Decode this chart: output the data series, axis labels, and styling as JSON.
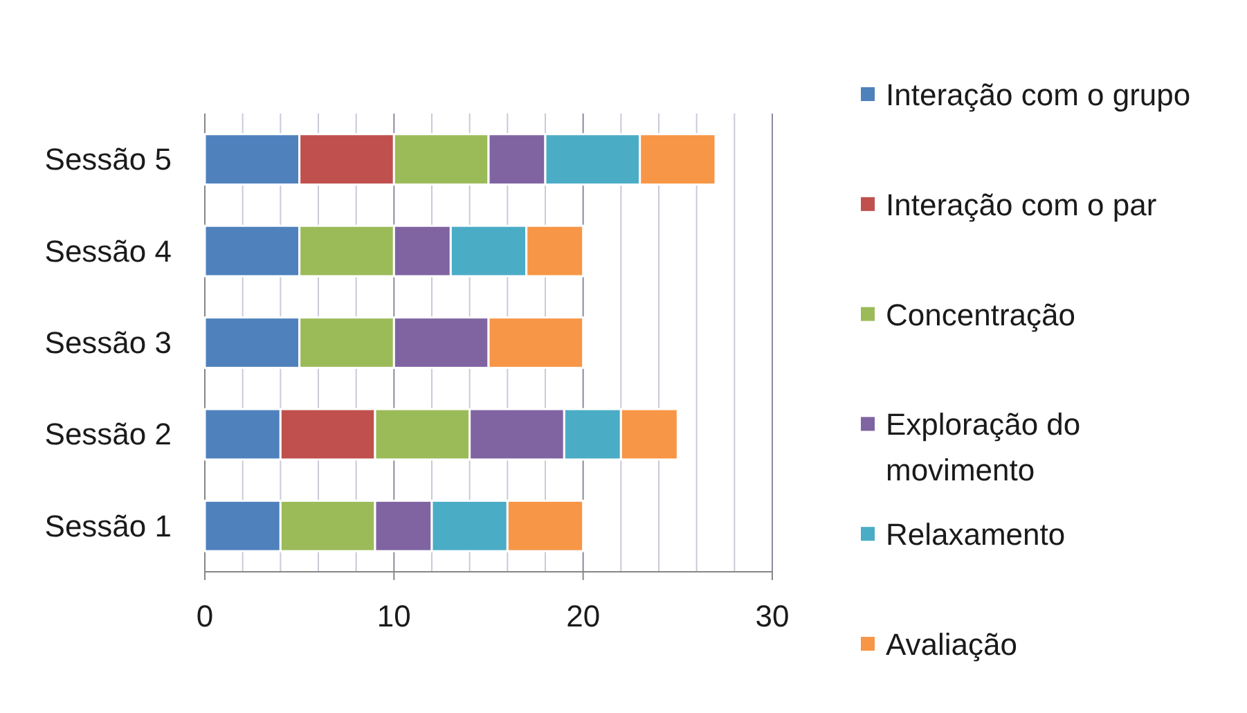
{
  "chart_data": {
    "type": "bar",
    "orientation": "horizontal",
    "stacked": true,
    "categories": [
      "Sessão 5",
      "Sessão 4",
      "Sessão 3",
      "Sessão 2",
      "Sessão 1"
    ],
    "series": [
      {
        "name": "Interação com o grupo",
        "color": "#4f81bd",
        "values": [
          5,
          5,
          5,
          4,
          4
        ]
      },
      {
        "name": "Interação com o par",
        "color": "#c0504d",
        "values": [
          5,
          0,
          0,
          5,
          0
        ]
      },
      {
        "name": "Concentração",
        "color": "#9bbb59",
        "values": [
          5,
          5,
          5,
          5,
          5
        ]
      },
      {
        "name": "Exploração do movimento",
        "color": "#8064a2",
        "values": [
          3,
          3,
          5,
          5,
          3
        ]
      },
      {
        "name": "Relaxamento",
        "color": "#4bacc6",
        "values": [
          5,
          4,
          0,
          3,
          4
        ]
      },
      {
        "name": "Avaliação",
        "color": "#f79646",
        "values": [
          4,
          3,
          5,
          3,
          4
        ]
      }
    ],
    "xlim": [
      0,
      30
    ],
    "xticks": [
      0,
      {
        "value": 2,
        "label": null
      },
      {
        "value": 4,
        "label": null
      },
      {
        "value": 6,
        "label": null
      },
      {
        "value": 8,
        "label": null
      },
      10,
      {
        "value": 12,
        "label": null
      },
      {
        "value": 14,
        "label": null
      },
      {
        "value": 16,
        "label": null
      },
      {
        "value": 18,
        "label": null
      },
      20,
      {
        "value": 22,
        "label": null
      },
      {
        "value": 24,
        "label": null
      },
      {
        "value": 26,
        "label": null
      },
      {
        "value": 28,
        "label": null
      },
      30
    ],
    "grid": "x",
    "legend": "right"
  }
}
